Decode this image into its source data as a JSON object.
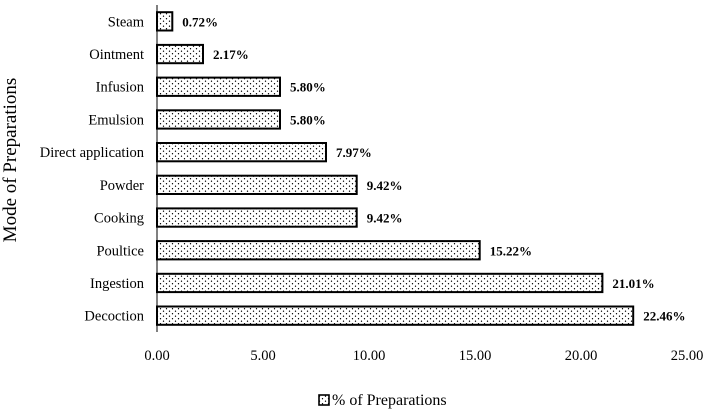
{
  "chart_data": {
    "type": "bar",
    "orientation": "horizontal",
    "categories": [
      "Decoction",
      "Ingestion",
      "Poultice",
      "Cooking",
      "Powder",
      "Direct application",
      "Emulsion",
      "Infusion",
      "Ointment",
      "Steam"
    ],
    "series": [
      {
        "name": "% of Preparations",
        "values": [
          22.46,
          21.01,
          15.22,
          9.42,
          9.42,
          7.97,
          5.8,
          5.8,
          2.17,
          0.72
        ]
      }
    ],
    "value_labels": [
      "22.46%",
      "21.01%",
      "15.22%",
      "9.42%",
      "9.42%",
      "7.97%",
      "5.80%",
      "5.80%",
      "2.17%",
      "0.72%"
    ],
    "title": "",
    "xlabel": "",
    "ylabel": "Mode of Preparations",
    "xlim": [
      0,
      25
    ],
    "xticks": [
      "0.00",
      "5.00",
      "10.00",
      "15.00",
      "20.00",
      "25.00"
    ],
    "grid": false,
    "legend_position": "bottom",
    "bar_fill": "dotted pattern",
    "colors": {
      "bar_fill": "#ffffff",
      "bar_stroke": "#000000",
      "dots": "#000000"
    }
  }
}
